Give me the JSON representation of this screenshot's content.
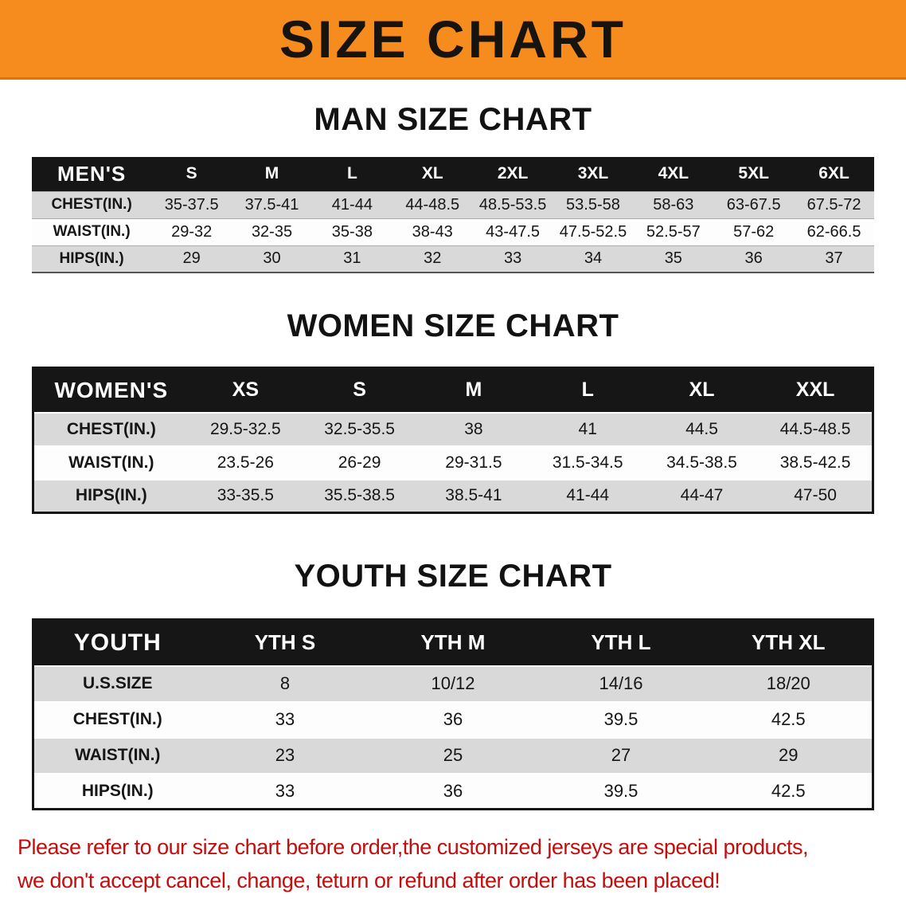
{
  "banner": {
    "title": "SIZE CHART",
    "bg_color": "#F68B1E",
    "text_color": "#17130E"
  },
  "sections": [
    {
      "id": "men",
      "heading": "MAN SIZE CHART",
      "table": {
        "header": [
          "MEN'S",
          "S",
          "M",
          "L",
          "XL",
          "2XL",
          "3XL",
          "4XL",
          "5XL",
          "6XL"
        ],
        "rows": [
          [
            "CHEST(IN.)",
            "35-37.5",
            "37.5-41",
            "41-44",
            "44-48.5",
            "48.5-53.5",
            "53.5-58",
            "58-63",
            "63-67.5",
            "67.5-72"
          ],
          [
            "WAIST(IN.)",
            "29-32",
            "32-35",
            "35-38",
            "38-43",
            "43-47.5",
            "47.5-52.5",
            "52.5-57",
            "57-62",
            "62-66.5"
          ],
          [
            "HIPS(IN.)",
            "29",
            "30",
            "31",
            "32",
            "33",
            "34",
            "35",
            "36",
            "37"
          ]
        ]
      }
    },
    {
      "id": "women",
      "heading": "WOMEN SIZE CHART",
      "table": {
        "header": [
          "WOMEN'S",
          "XS",
          "S",
          "M",
          "L",
          "XL",
          "XXL"
        ],
        "rows": [
          [
            "CHEST(IN.)",
            "29.5-32.5",
            "32.5-35.5",
            "38",
            "41",
            "44.5",
            "44.5-48.5"
          ],
          [
            "WAIST(IN.)",
            "23.5-26",
            "26-29",
            "29-31.5",
            "31.5-34.5",
            "34.5-38.5",
            "38.5-42.5"
          ],
          [
            "HIPS(IN.)",
            "33-35.5",
            "35.5-38.5",
            "38.5-41",
            "41-44",
            "44-47",
            "47-50"
          ]
        ]
      }
    },
    {
      "id": "youth",
      "heading": "YOUTH SIZE CHART",
      "table": {
        "header": [
          "YOUTH",
          "YTH S",
          "YTH M",
          "YTH L",
          "YTH XL"
        ],
        "rows": [
          [
            "U.S.SIZE",
            "8",
            "10/12",
            "14/16",
            "18/20"
          ],
          [
            "CHEST(IN.)",
            "33",
            "36",
            "39.5",
            "42.5"
          ],
          [
            "WAIST(IN.)",
            "23",
            "25",
            "27",
            "29"
          ],
          [
            "HIPS(IN.)",
            "33",
            "36",
            "39.5",
            "42.5"
          ]
        ]
      }
    }
  ],
  "footer": {
    "line1": "Please refer to our size chart before order,the customized jerseys are special products,",
    "line2": "we don't accept cancel, change, teturn or refund after order has been placed!",
    "color": "#C40D0D"
  },
  "colors": {
    "header_row_bg": "#161616",
    "shaded_row_bg": "#D9D9D9",
    "plain_row_bg": "#FDFDFD"
  }
}
